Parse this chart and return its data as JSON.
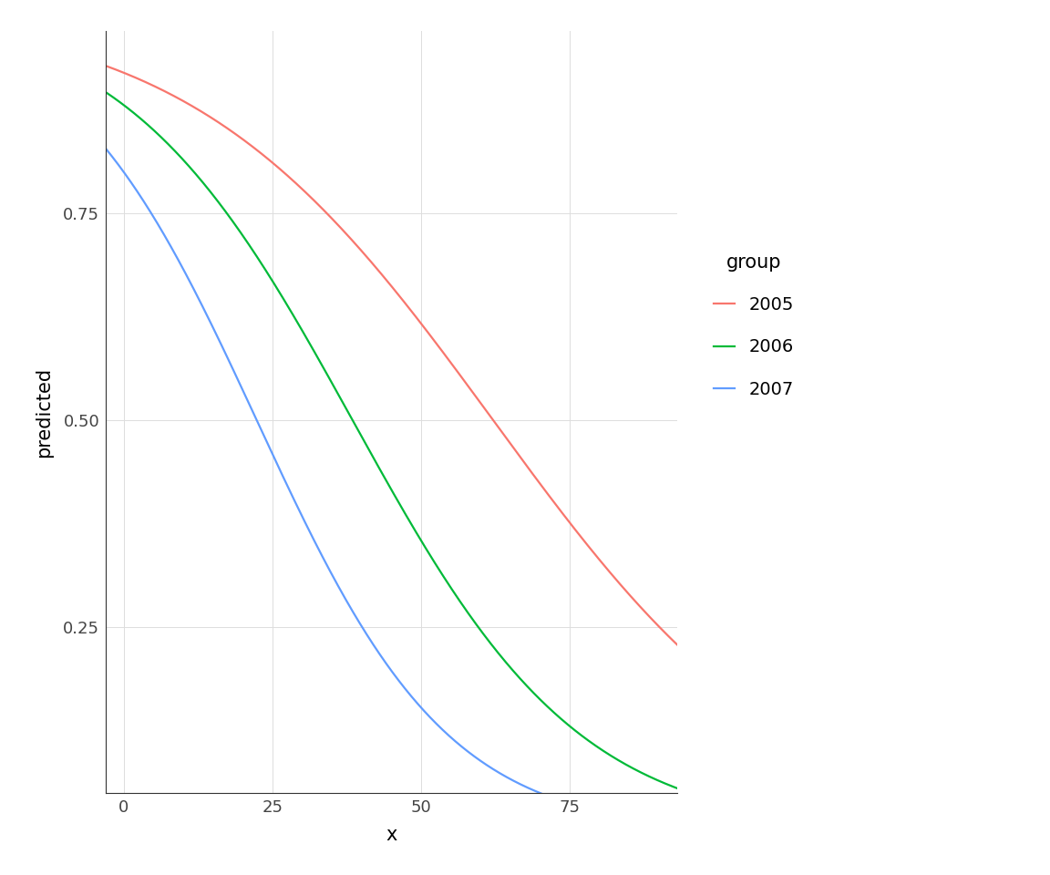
{
  "title": "",
  "xlabel": "x",
  "ylabel": "predicted",
  "xlim": [
    -3,
    93
  ],
  "ylim": [
    0.05,
    0.97
  ],
  "x_ticks": [
    0,
    25,
    50,
    75
  ],
  "y_ticks": [
    0.25,
    0.5,
    0.75
  ],
  "groups": [
    "2005",
    "2006",
    "2007"
  ],
  "colors": [
    "#F8766D",
    "#00BA38",
    "#619CFF"
  ],
  "legend_title": "group",
  "background_color": "#FFFFFF",
  "grid_color": "#DDDDDD",
  "logistic_params": [
    {
      "intercept": 2.44,
      "slope": -0.0393
    },
    {
      "intercept": 2.0,
      "slope": -0.052
    },
    {
      "intercept": 1.386,
      "slope": -0.062
    }
  ],
  "line_width": 1.6
}
